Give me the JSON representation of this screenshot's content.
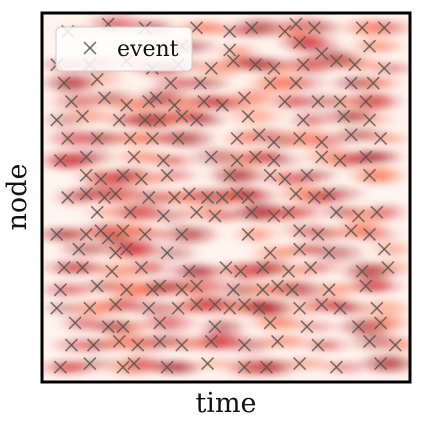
{
  "chart_data": {
    "type": "scatter",
    "title": "",
    "xlabel": "time",
    "ylabel": "node",
    "xlim": [
      0,
      1
    ],
    "ylim": [
      0,
      1
    ],
    "x_ticks": [],
    "y_ticks": [],
    "grid": false,
    "background": "heatmap",
    "heatmap_colors": [
      "#fff5f0",
      "#fcbba1",
      "#fb6a4a",
      "#cb181d",
      "#a50f15"
    ],
    "legend": {
      "placement": "top-left",
      "entries": [
        "event"
      ]
    },
    "series": [
      {
        "name": "event",
        "marker": "x",
        "color": "#555555",
        "points": [
          [
            0.07,
            0.95
          ],
          [
            0.18,
            0.97
          ],
          [
            0.28,
            0.96
          ],
          [
            0.42,
            0.96
          ],
          [
            0.51,
            0.95
          ],
          [
            0.57,
            0.96
          ],
          [
            0.66,
            0.95
          ],
          [
            0.69,
            0.97
          ],
          [
            0.74,
            0.96
          ],
          [
            0.87,
            0.96
          ],
          [
            0.93,
            0.96
          ],
          [
            0.38,
            0.91
          ],
          [
            0.51,
            0.9
          ],
          [
            0.7,
            0.92
          ],
          [
            0.76,
            0.89
          ],
          [
            0.89,
            0.91
          ],
          [
            0.04,
            0.86
          ],
          [
            0.13,
            0.86
          ],
          [
            0.23,
            0.87
          ],
          [
            0.3,
            0.85
          ],
          [
            0.37,
            0.86
          ],
          [
            0.46,
            0.85
          ],
          [
            0.52,
            0.87
          ],
          [
            0.58,
            0.86
          ],
          [
            0.63,
            0.85
          ],
          [
            0.71,
            0.86
          ],
          [
            0.8,
            0.87
          ],
          [
            0.85,
            0.86
          ],
          [
            0.93,
            0.85
          ],
          [
            0.06,
            0.81
          ],
          [
            0.15,
            0.82
          ],
          [
            0.35,
            0.81
          ],
          [
            0.43,
            0.81
          ],
          [
            0.62,
            0.81
          ],
          [
            0.69,
            0.81
          ],
          [
            0.84,
            0.81
          ],
          [
            0.9,
            0.81
          ],
          [
            0.08,
            0.76
          ],
          [
            0.17,
            0.77
          ],
          [
            0.23,
            0.75
          ],
          [
            0.29,
            0.76
          ],
          [
            0.31,
            0.77
          ],
          [
            0.36,
            0.75
          ],
          [
            0.44,
            0.76
          ],
          [
            0.49,
            0.75
          ],
          [
            0.55,
            0.77
          ],
          [
            0.66,
            0.76
          ],
          [
            0.75,
            0.76
          ],
          [
            0.81,
            0.76
          ],
          [
            0.88,
            0.76
          ],
          [
            0.04,
            0.71
          ],
          [
            0.11,
            0.72
          ],
          [
            0.21,
            0.71
          ],
          [
            0.28,
            0.71
          ],
          [
            0.32,
            0.71
          ],
          [
            0.38,
            0.72
          ],
          [
            0.42,
            0.71
          ],
          [
            0.56,
            0.72
          ],
          [
            0.71,
            0.71
          ],
          [
            0.82,
            0.72
          ],
          [
            0.89,
            0.71
          ],
          [
            0.07,
            0.66
          ],
          [
            0.15,
            0.66
          ],
          [
            0.24,
            0.66
          ],
          [
            0.3,
            0.66
          ],
          [
            0.37,
            0.66
          ],
          [
            0.53,
            0.66
          ],
          [
            0.59,
            0.67
          ],
          [
            0.63,
            0.65
          ],
          [
            0.7,
            0.66
          ],
          [
            0.76,
            0.65
          ],
          [
            0.84,
            0.67
          ],
          [
            0.92,
            0.66
          ],
          [
            0.05,
            0.6
          ],
          [
            0.12,
            0.61
          ],
          [
            0.25,
            0.61
          ],
          [
            0.33,
            0.6
          ],
          [
            0.46,
            0.61
          ],
          [
            0.53,
            0.6
          ],
          [
            0.58,
            0.61
          ],
          [
            0.63,
            0.6
          ],
          [
            0.76,
            0.61
          ],
          [
            0.81,
            0.6
          ],
          [
            0.88,
            0.61
          ],
          [
            0.12,
            0.56
          ],
          [
            0.16,
            0.55
          ],
          [
            0.22,
            0.56
          ],
          [
            0.27,
            0.55
          ],
          [
            0.34,
            0.56
          ],
          [
            0.51,
            0.56
          ],
          [
            0.62,
            0.56
          ],
          [
            0.66,
            0.55
          ],
          [
            0.72,
            0.56
          ],
          [
            0.89,
            0.56
          ],
          [
            0.07,
            0.5
          ],
          [
            0.12,
            0.51
          ],
          [
            0.17,
            0.5
          ],
          [
            0.2,
            0.51
          ],
          [
            0.29,
            0.5
          ],
          [
            0.36,
            0.5
          ],
          [
            0.4,
            0.51
          ],
          [
            0.45,
            0.5
          ],
          [
            0.49,
            0.5
          ],
          [
            0.53,
            0.51
          ],
          [
            0.56,
            0.5
          ],
          [
            0.69,
            0.51
          ],
          [
            0.74,
            0.5
          ],
          [
            0.78,
            0.51
          ],
          [
            0.15,
            0.46
          ],
          [
            0.24,
            0.46
          ],
          [
            0.33,
            0.45
          ],
          [
            0.42,
            0.46
          ],
          [
            0.47,
            0.45
          ],
          [
            0.57,
            0.46
          ],
          [
            0.63,
            0.45
          ],
          [
            0.67,
            0.46
          ],
          [
            0.8,
            0.46
          ],
          [
            0.86,
            0.45
          ],
          [
            0.91,
            0.46
          ],
          [
            0.04,
            0.4
          ],
          [
            0.12,
            0.4
          ],
          [
            0.16,
            0.41
          ],
          [
            0.18,
            0.39
          ],
          [
            0.22,
            0.41
          ],
          [
            0.28,
            0.4
          ],
          [
            0.38,
            0.4
          ],
          [
            0.56,
            0.4
          ],
          [
            0.7,
            0.41
          ],
          [
            0.75,
            0.4
          ],
          [
            0.84,
            0.41
          ],
          [
            0.89,
            0.4
          ],
          [
            0.1,
            0.36
          ],
          [
            0.2,
            0.35
          ],
          [
            0.23,
            0.36
          ],
          [
            0.34,
            0.35
          ],
          [
            0.62,
            0.35
          ],
          [
            0.7,
            0.36
          ],
          [
            0.78,
            0.35
          ],
          [
            0.93,
            0.36
          ],
          [
            0.06,
            0.31
          ],
          [
            0.11,
            0.31
          ],
          [
            0.19,
            0.3
          ],
          [
            0.27,
            0.31
          ],
          [
            0.4,
            0.3
          ],
          [
            0.5,
            0.31
          ],
          [
            0.54,
            0.3
          ],
          [
            0.6,
            0.31
          ],
          [
            0.67,
            0.3
          ],
          [
            0.73,
            0.31
          ],
          [
            0.87,
            0.3
          ],
          [
            0.94,
            0.31
          ],
          [
            0.05,
            0.25
          ],
          [
            0.15,
            0.26
          ],
          [
            0.23,
            0.25
          ],
          [
            0.3,
            0.25
          ],
          [
            0.32,
            0.26
          ],
          [
            0.38,
            0.25
          ],
          [
            0.42,
            0.26
          ],
          [
            0.52,
            0.25
          ],
          [
            0.6,
            0.25
          ],
          [
            0.64,
            0.26
          ],
          [
            0.68,
            0.25
          ],
          [
            0.78,
            0.25
          ],
          [
            0.88,
            0.26
          ],
          [
            0.04,
            0.2
          ],
          [
            0.13,
            0.2
          ],
          [
            0.2,
            0.21
          ],
          [
            0.29,
            0.2
          ],
          [
            0.37,
            0.2
          ],
          [
            0.42,
            0.21
          ],
          [
            0.47,
            0.21
          ],
          [
            0.51,
            0.2
          ],
          [
            0.55,
            0.21
          ],
          [
            0.59,
            0.2
          ],
          [
            0.7,
            0.2
          ],
          [
            0.76,
            0.21
          ],
          [
            0.81,
            0.2
          ],
          [
            0.91,
            0.2
          ],
          [
            0.09,
            0.16
          ],
          [
            0.18,
            0.15
          ],
          [
            0.22,
            0.15
          ],
          [
            0.32,
            0.16
          ],
          [
            0.47,
            0.15
          ],
          [
            0.62,
            0.16
          ],
          [
            0.72,
            0.15
          ],
          [
            0.86,
            0.15
          ],
          [
            0.92,
            0.16
          ],
          [
            0.08,
            0.1
          ],
          [
            0.14,
            0.1
          ],
          [
            0.21,
            0.11
          ],
          [
            0.26,
            0.1
          ],
          [
            0.32,
            0.11
          ],
          [
            0.38,
            0.1
          ],
          [
            0.46,
            0.11
          ],
          [
            0.55,
            0.1
          ],
          [
            0.64,
            0.11
          ],
          [
            0.75,
            0.1
          ],
          [
            0.89,
            0.11
          ],
          [
            0.96,
            0.1
          ],
          [
            0.05,
            0.04
          ],
          [
            0.13,
            0.05
          ],
          [
            0.22,
            0.04
          ],
          [
            0.25,
            0.05
          ],
          [
            0.34,
            0.04
          ],
          [
            0.45,
            0.05
          ],
          [
            0.55,
            0.04
          ],
          [
            0.61,
            0.04
          ],
          [
            0.7,
            0.05
          ],
          [
            0.8,
            0.04
          ],
          [
            0.92,
            0.05
          ]
        ]
      }
    ]
  }
}
